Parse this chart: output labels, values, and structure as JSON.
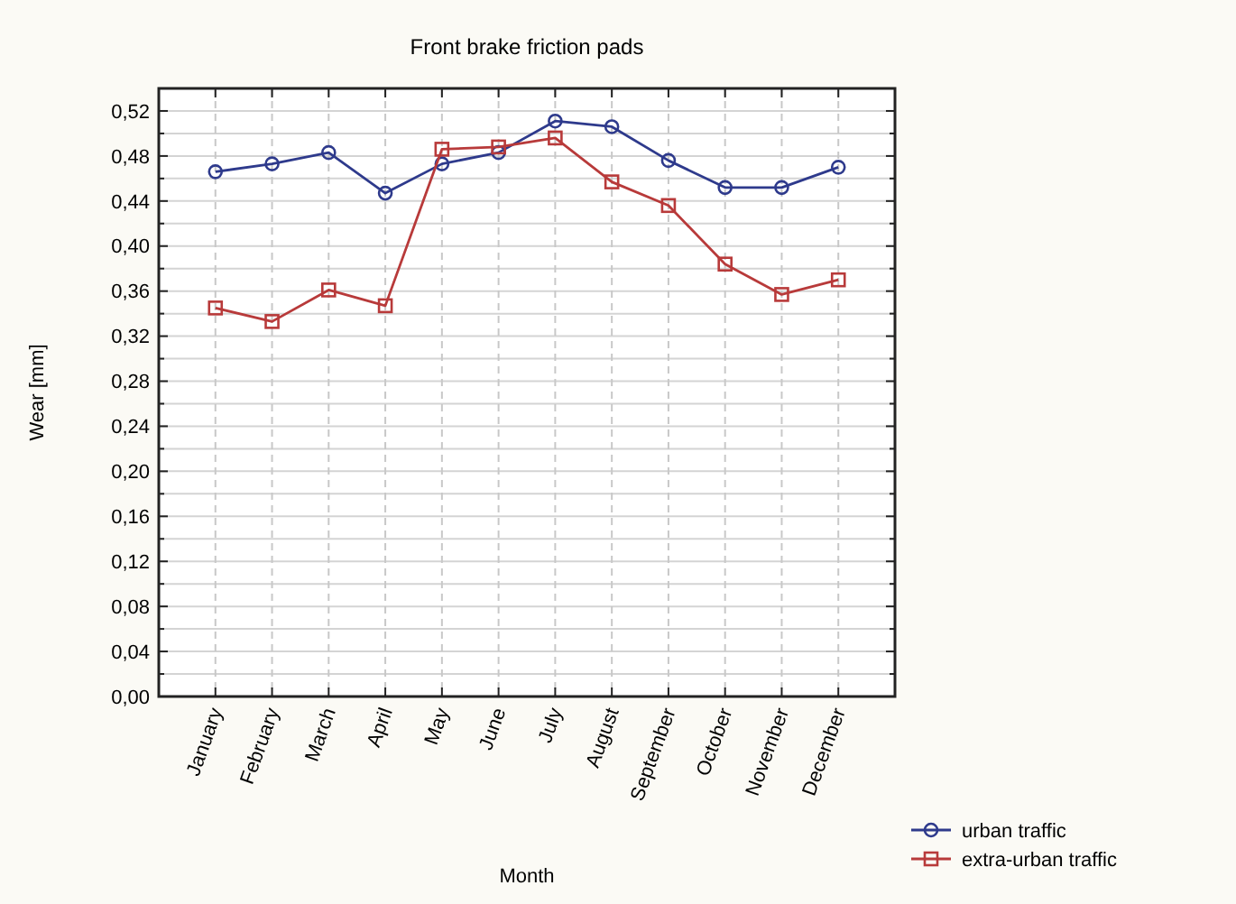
{
  "chart_data": {
    "type": "line",
    "title": "Front brake friction pads",
    "xlabel": "Month",
    "ylabel": "Wear [mm]",
    "categories": [
      "January",
      "February",
      "March",
      "April",
      "May",
      "June",
      "July",
      "August",
      "September",
      "October",
      "November",
      "December"
    ],
    "series": [
      {
        "name": "urban traffic",
        "color": "#2e3a8c",
        "marker": "circle",
        "values": [
          0.466,
          0.473,
          0.483,
          0.447,
          0.473,
          0.483,
          0.511,
          0.506,
          0.476,
          0.452,
          0.452,
          0.47
        ]
      },
      {
        "name": "extra-urban traffic",
        "color": "#b83a3a",
        "marker": "square",
        "values": [
          0.345,
          0.333,
          0.361,
          0.347,
          0.486,
          0.488,
          0.496,
          0.457,
          0.436,
          0.384,
          0.357,
          0.37
        ]
      }
    ],
    "ylim": [
      0,
      0.54
    ],
    "yticks": [
      {
        "value": 0,
        "label": "0,00"
      },
      {
        "value": 0.02,
        "label": null
      },
      {
        "value": 0.04,
        "label": "0,04"
      },
      {
        "value": 0.06,
        "label": null
      },
      {
        "value": 0.08,
        "label": "0,08"
      },
      {
        "value": 0.1,
        "label": null
      },
      {
        "value": 0.12,
        "label": "0,12"
      },
      {
        "value": 0.14,
        "label": null
      },
      {
        "value": 0.16,
        "label": "0,16"
      },
      {
        "value": 0.18,
        "label": null
      },
      {
        "value": 0.2,
        "label": "0,20"
      },
      {
        "value": 0.22,
        "label": null
      },
      {
        "value": 0.24,
        "label": "0,24"
      },
      {
        "value": 0.26,
        "label": null
      },
      {
        "value": 0.28,
        "label": "0,28"
      },
      {
        "value": 0.3,
        "label": null
      },
      {
        "value": 0.32,
        "label": "0,32"
      },
      {
        "value": 0.34,
        "label": null
      },
      {
        "value": 0.36,
        "label": "0,36"
      },
      {
        "value": 0.38,
        "label": null
      },
      {
        "value": 0.4,
        "label": "0,40"
      },
      {
        "value": 0.42,
        "label": null
      },
      {
        "value": 0.44,
        "label": "0,44"
      },
      {
        "value": 0.46,
        "label": null
      },
      {
        "value": 0.48,
        "label": "0,48"
      },
      {
        "value": 0.5,
        "label": null
      },
      {
        "value": 0.52,
        "label": "0,52"
      }
    ],
    "grid": true,
    "legend": "bottom right",
    "line_style": "solid"
  }
}
